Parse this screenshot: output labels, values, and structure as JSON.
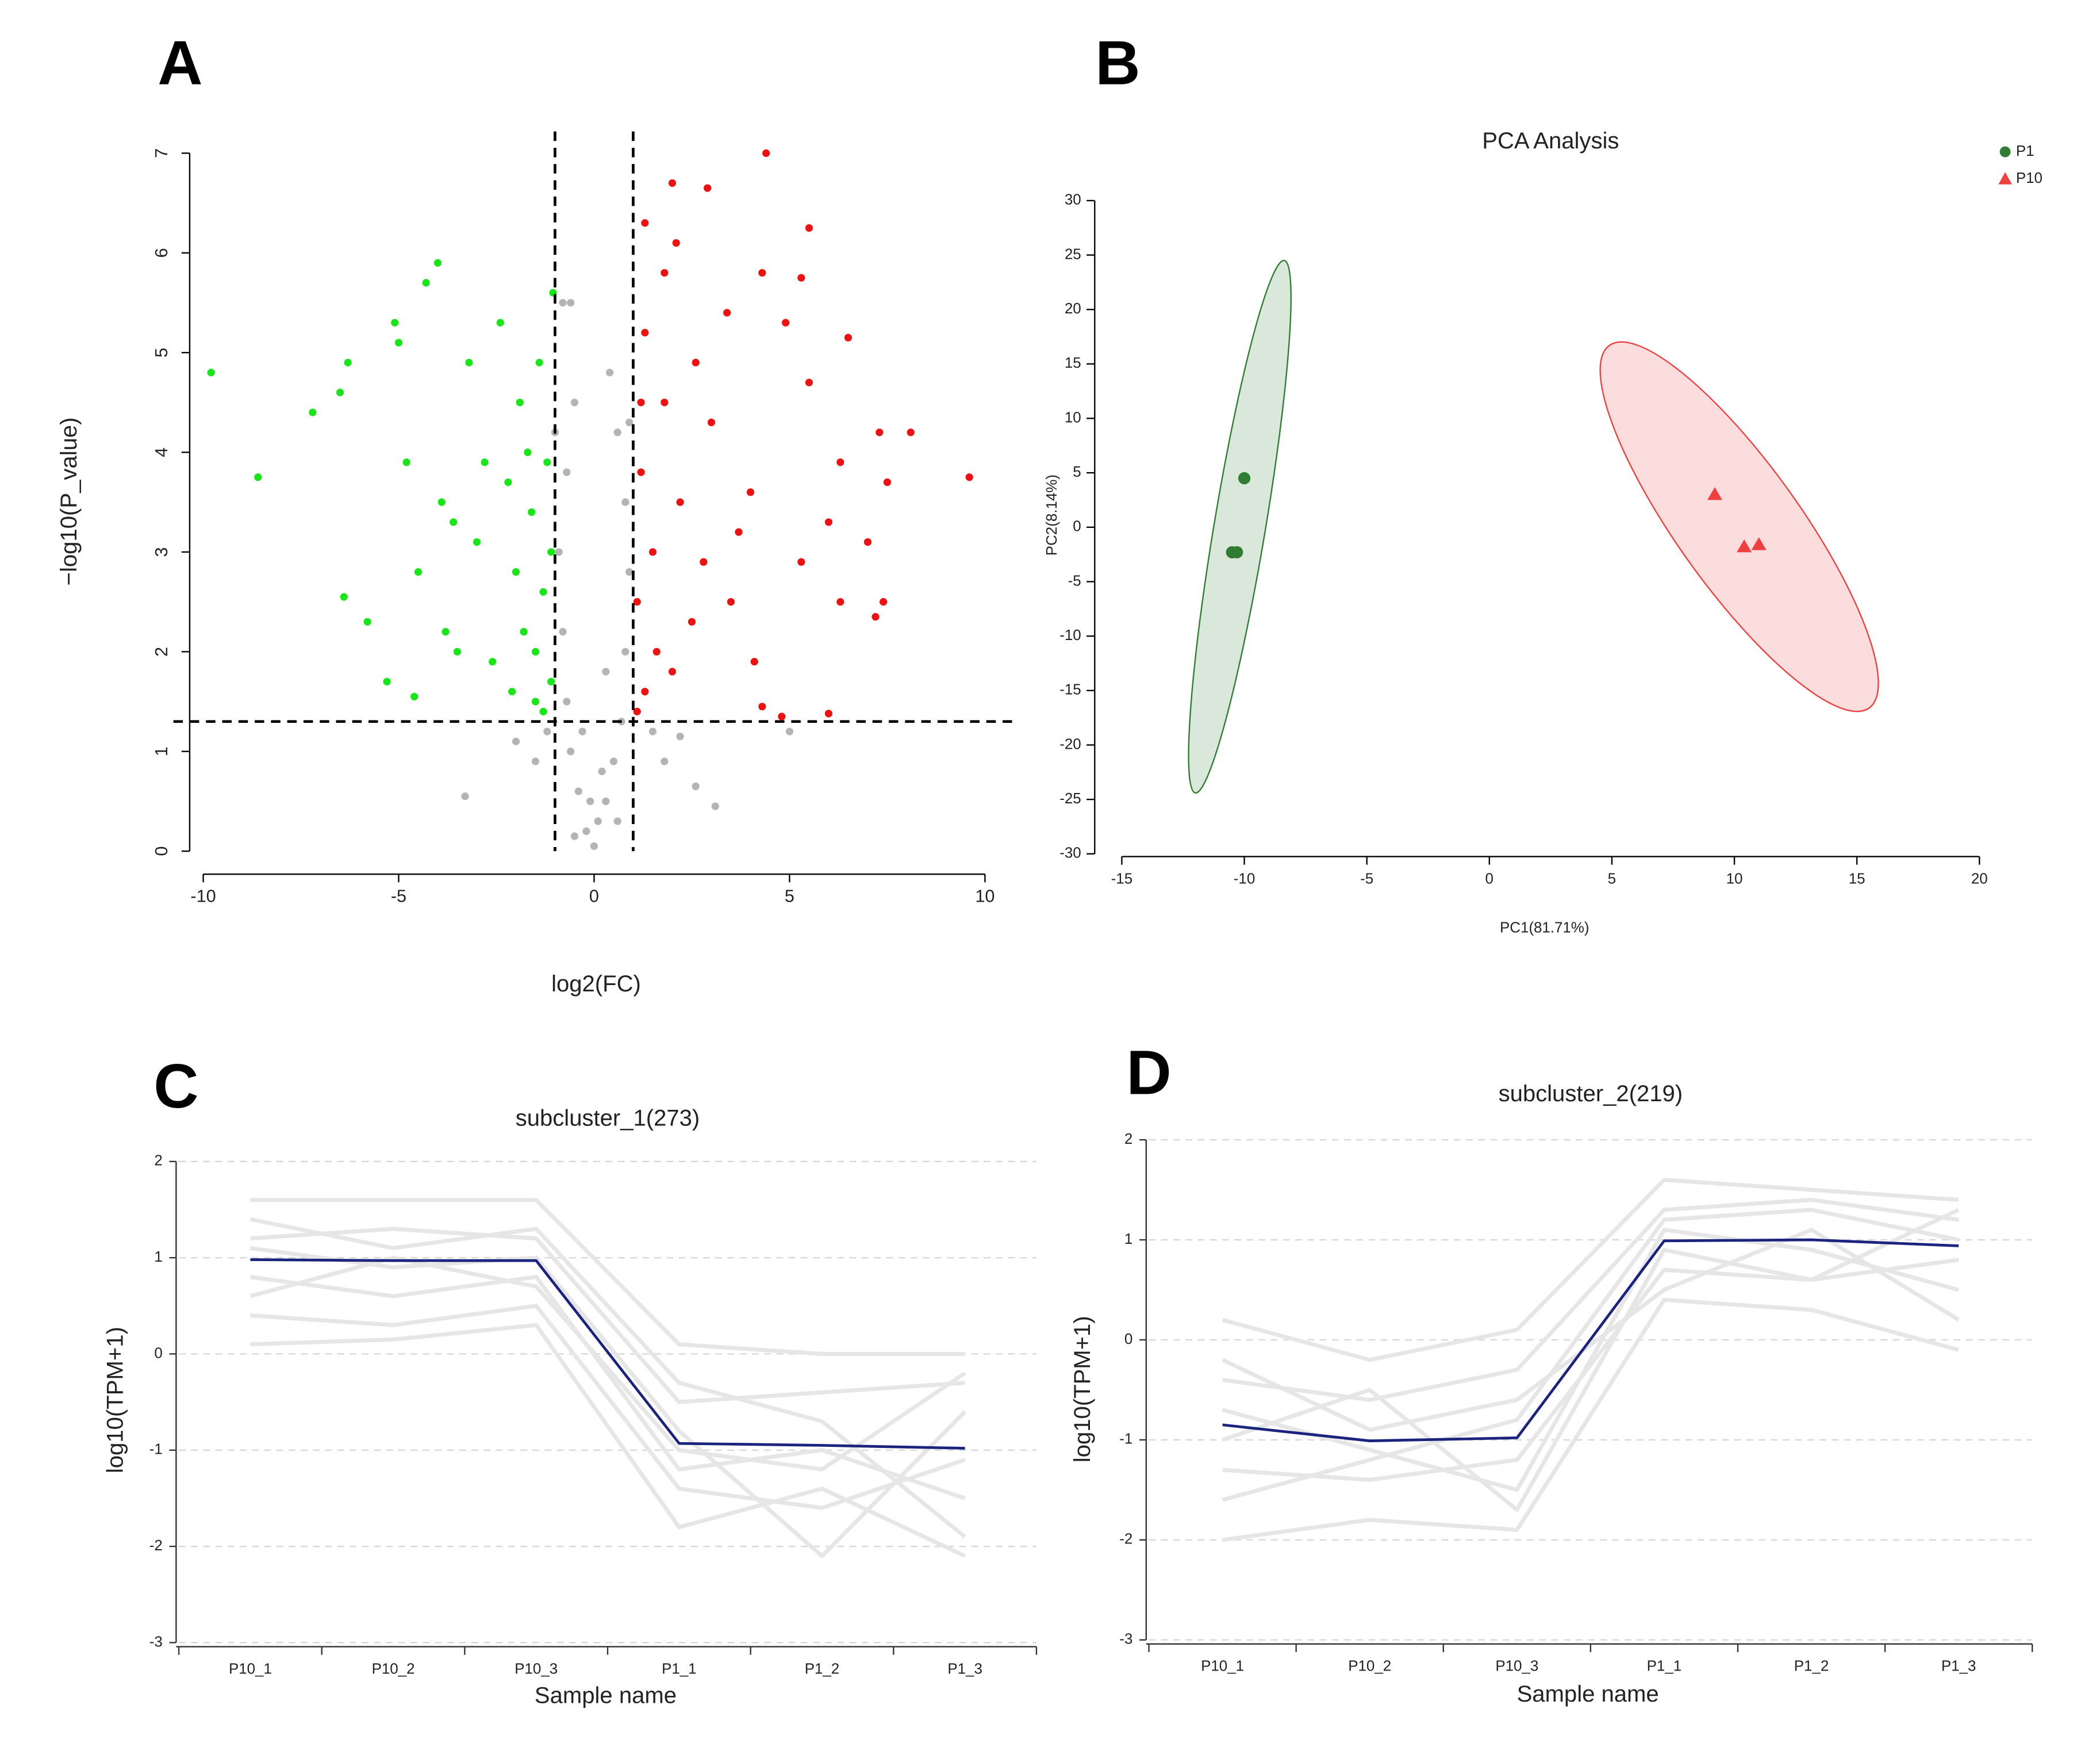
{
  "chart_data": [
    {
      "type": "scatter",
      "panel_label": "A",
      "xlabel": "log2(FC)",
      "ylabel": "−log10(P_value)",
      "xlim": [
        -10,
        10
      ],
      "ylim": [
        0,
        7
      ],
      "xticks": [
        -10,
        -5,
        0,
        5,
        10
      ],
      "yticks": [
        0,
        1,
        2,
        3,
        4,
        5,
        6,
        7
      ],
      "rotate_ytick_labels": true,
      "threshold_x": [
        -1,
        1
      ],
      "threshold_y": 1.3,
      "series": [
        {
          "color": "#b4b4b4",
          "marker": "circle",
          "x": [
            0,
            0.1,
            -0.2,
            0.3,
            -0.4,
            0.5,
            -0.6,
            0.7,
            -0.7,
            0.8,
            -0.8,
            0.9,
            -0.9,
            0.8,
            -0.7,
            0.6,
            -0.5,
            0.4,
            -0.8,
            -0.6,
            0.3,
            -0.3,
            0.2,
            -0.1,
            -1.2,
            1.5,
            1.8,
            -2.0,
            -3.3,
            3.1,
            2.6,
            2.2,
            5.0,
            -1.5,
            0.9,
            -1.0,
            0.6,
            -0.5
          ],
          "values": [
            0.05,
            0.3,
            0.2,
            0.5,
            0.6,
            0.9,
            1.0,
            1.3,
            1.5,
            2.0,
            2.2,
            2.8,
            3.0,
            3.5,
            3.8,
            4.2,
            4.5,
            4.8,
            5.5,
            5.5,
            1.8,
            1.2,
            0.8,
            0.5,
            1.2,
            1.2,
            0.9,
            1.1,
            0.55,
            0.45,
            0.65,
            1.15,
            1.2,
            0.9,
            4.3,
            4.2,
            0.3,
            0.15
          ]
        },
        {
          "color": "#19e619",
          "marker": "circle",
          "x": [
            -9.8,
            -8.6,
            -7.2,
            -6.5,
            -6.3,
            -6.4,
            -5.8,
            -5.1,
            -5.0,
            -4.8,
            -4.5,
            -4.3,
            -4.0,
            -3.9,
            -3.8,
            -3.6,
            -3.2,
            -3.0,
            -2.8,
            -2.6,
            -2.4,
            -2.2,
            -2.0,
            -1.9,
            -1.8,
            -1.6,
            -1.5,
            -1.4,
            -1.3,
            -1.2,
            -1.1,
            -1.05,
            -1.1,
            -1.5,
            -1.7,
            -2.1,
            -5.3,
            -4.6,
            -3.5,
            -1.3
          ],
          "values": [
            4.8,
            3.75,
            4.4,
            4.6,
            4.9,
            2.55,
            2.3,
            5.3,
            5.1,
            3.9,
            2.8,
            5.7,
            5.9,
            3.5,
            2.2,
            3.3,
            4.9,
            3.1,
            3.9,
            1.9,
            5.3,
            3.7,
            2.8,
            4.5,
            2.2,
            3.4,
            1.5,
            4.9,
            2.6,
            3.9,
            1.7,
            5.6,
            3.0,
            2.0,
            4.0,
            1.6,
            1.7,
            1.55,
            2.0,
            1.4
          ]
        },
        {
          "color": "#ee1111",
          "marker": "circle",
          "x": [
            4.4,
            2.0,
            2.9,
            1.3,
            2.1,
            5.5,
            4.3,
            5.3,
            1.8,
            3.4,
            4.9,
            6.5,
            1.3,
            2.6,
            5.5,
            1.8,
            7.3,
            8.1,
            3.0,
            6.3,
            9.6,
            7.5,
            1.2,
            2.2,
            4.0,
            6.0,
            7.0,
            1.5,
            2.8,
            3.7,
            5.3,
            7.4,
            7.2,
            6.3,
            1.1,
            2.5,
            3.5,
            1.6,
            4.1,
            1.3,
            4.3,
            4.8,
            6.0,
            1.1,
            2.0,
            1.2
          ],
          "values": [
            7.0,
            6.7,
            6.65,
            6.3,
            6.1,
            6.25,
            5.8,
            5.75,
            5.8,
            5.4,
            5.3,
            5.15,
            5.2,
            4.9,
            4.7,
            4.5,
            4.2,
            4.2,
            4.3,
            3.9,
            3.75,
            3.7,
            3.8,
            3.5,
            3.6,
            3.3,
            3.1,
            3.0,
            2.9,
            3.2,
            2.9,
            2.5,
            2.35,
            2.5,
            2.5,
            2.3,
            2.5,
            2.0,
            1.9,
            1.6,
            1.45,
            1.35,
            1.38,
            1.4,
            1.8,
            4.5
          ]
        }
      ]
    },
    {
      "type": "pca",
      "panel_label": "B",
      "title": "PCA Analysis",
      "xlabel": "PC1(81.71%)",
      "ylabel": "PC2(8.14%)",
      "xlim": [
        -15,
        20
      ],
      "ylim": [
        -30,
        30
      ],
      "xticks": [
        -15,
        -10,
        -5,
        0,
        5,
        10,
        15,
        20
      ],
      "yticks": [
        -30,
        -25,
        -20,
        -15,
        -10,
        -5,
        0,
        5,
        10,
        15,
        20,
        25,
        30
      ],
      "legend": "top-right",
      "series": [
        {
          "name": "P1",
          "color": "#2e7d32",
          "marker": "circle",
          "x": [
            -10,
            -10.5,
            -10.3
          ],
          "values": [
            4.5,
            -2.3,
            -2.3
          ],
          "ellipse": {
            "x": [
              -8.37,
              -12.0
            ],
            "y": [
              24.5,
              -24.4
            ],
            "width": 2.1
          }
        },
        {
          "name": "P10",
          "color": "#ef4040",
          "marker": "triangle",
          "x": [
            9.2,
            10.4,
            11.0
          ],
          "values": [
            3.0,
            -1.8,
            -1.6
          ],
          "ellipse": {
            "x": [
              4.9,
              15.5
            ],
            "y": [
              16.7,
              -16.6
            ],
            "width": 5.0
          }
        }
      ]
    },
    {
      "type": "line",
      "panel_label": "C",
      "title": "subcluster_1(273)",
      "xlabel": "Sample name",
      "ylabel": "log10(TPM+1)",
      "categories": [
        "P10_1",
        "P10_2",
        "P10_3",
        "P1_1",
        "P1_2",
        "P1_3"
      ],
      "ylim": [
        -3,
        2
      ],
      "yticks": [
        -3,
        -2,
        -1,
        0,
        1,
        2
      ],
      "grid": true,
      "series": [
        {
          "color": "#e6e6e6",
          "values": [
            1.6,
            1.6,
            1.6,
            0.1,
            0.0,
            0.0
          ]
        },
        {
          "color": "#e6e6e6",
          "values": [
            0.1,
            0.15,
            0.3,
            -1.8,
            -1.4,
            -2.1
          ]
        },
        {
          "color": "#e6e6e6",
          "values": [
            1.2,
            1.3,
            1.2,
            -0.5,
            -0.4,
            -0.3
          ]
        },
        {
          "color": "#e6e6e6",
          "values": [
            0.8,
            0.6,
            0.8,
            -1.2,
            -1.0,
            -1.5
          ]
        },
        {
          "color": "#e6e6e6",
          "values": [
            1.1,
            0.9,
            1.0,
            -0.8,
            -2.1,
            -0.6
          ]
        },
        {
          "color": "#e6e6e6",
          "values": [
            0.4,
            0.3,
            0.5,
            -1.4,
            -1.6,
            -1.1
          ]
        },
        {
          "color": "#e6e6e6",
          "values": [
            1.4,
            1.1,
            1.3,
            -0.3,
            -0.7,
            -1.9
          ]
        },
        {
          "color": "#e6e6e6",
          "values": [
            0.6,
            1.0,
            0.7,
            -1.0,
            -1.2,
            -0.2
          ]
        },
        {
          "color": "#1a237e",
          "values": [
            0.98,
            0.97,
            0.97,
            -0.93,
            -0.95,
            -0.98
          ]
        }
      ]
    },
    {
      "type": "line",
      "panel_label": "D",
      "title": "subcluster_2(219)",
      "xlabel": "Sample name",
      "ylabel": "log10(TPM+1)",
      "categories": [
        "P10_1",
        "P10_2",
        "P10_3",
        "P1_1",
        "P1_2",
        "P1_3"
      ],
      "ylim": [
        -3,
        2
      ],
      "yticks": [
        -3,
        -2,
        -1,
        0,
        1,
        2
      ],
      "grid": true,
      "series": [
        {
          "color": "#e6e6e6",
          "values": [
            0.2,
            -0.2,
            0.1,
            1.6,
            1.5,
            1.4
          ]
        },
        {
          "color": "#e6e6e6",
          "values": [
            -2.0,
            -1.8,
            -1.9,
            0.4,
            0.3,
            -0.1
          ]
        },
        {
          "color": "#e6e6e6",
          "values": [
            -0.4,
            -0.6,
            -0.3,
            1.3,
            1.4,
            1.2
          ]
        },
        {
          "color": "#e6e6e6",
          "values": [
            -1.3,
            -1.4,
            -1.2,
            0.7,
            0.6,
            0.8
          ]
        },
        {
          "color": "#e6e6e6",
          "values": [
            -0.7,
            -1.1,
            -1.5,
            1.1,
            0.9,
            0.5
          ]
        },
        {
          "color": "#e6e6e6",
          "values": [
            -1.6,
            -1.2,
            -0.8,
            1.2,
            1.3,
            1.0
          ]
        },
        {
          "color": "#e6e6e6",
          "values": [
            -0.2,
            -0.9,
            -0.6,
            0.5,
            1.1,
            0.2
          ]
        },
        {
          "color": "#e6e6e6",
          "values": [
            -1.0,
            -0.5,
            -1.7,
            0.9,
            0.6,
            1.3
          ]
        },
        {
          "color": "#1a237e",
          "values": [
            -0.85,
            -1.01,
            -0.98,
            0.99,
            1.0,
            0.94
          ]
        }
      ]
    }
  ]
}
